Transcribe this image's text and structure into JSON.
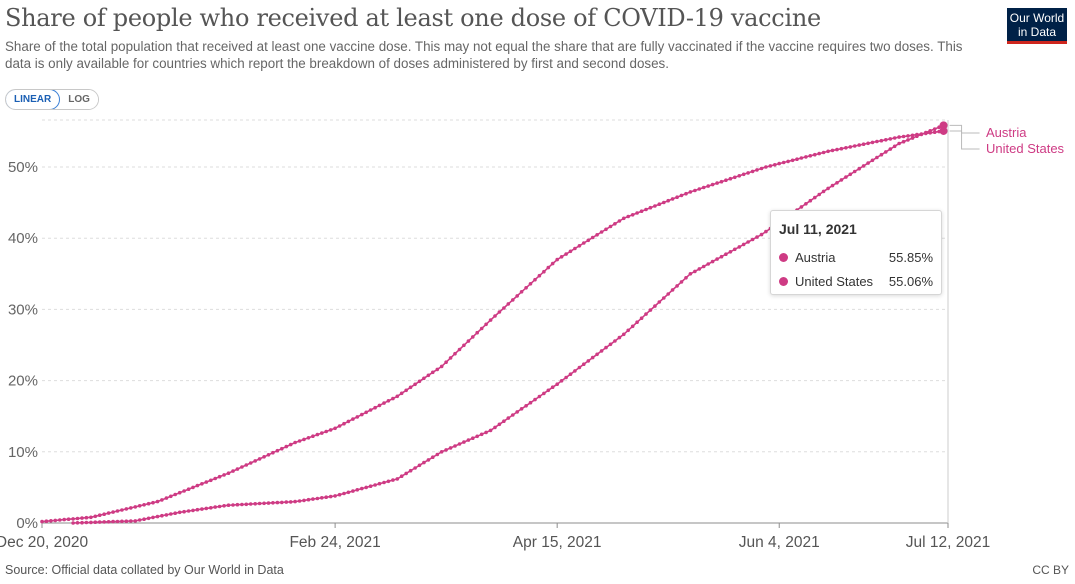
{
  "header": {
    "title": "Share of people who received at least one dose of COVID-19 vaccine",
    "subtitle": "Share of the total population that received at least one vaccine dose. This may not equal the share that are fully vaccinated if the vaccine requires two doses. This data is only available for countries which report the breakdown of doses administered by first and second doses.",
    "logo_line1": "Our World",
    "logo_line2": "in Data"
  },
  "scale_toggle": {
    "linear": "LINEAR",
    "log": "LOG",
    "selected": "LINEAR"
  },
  "tooltip": {
    "date": "Jul 11, 2021",
    "rows": [
      {
        "name": "Austria",
        "value": "55.85%"
      },
      {
        "name": "United States",
        "value": "55.06%"
      }
    ]
  },
  "footer": {
    "source": "Source: Official data collated by Our World in Data",
    "license": "CC BY"
  },
  "colors": {
    "series": "#ce3b84",
    "grid": "#dddddd",
    "axis": "#8e8e8e"
  },
  "chart_data": {
    "type": "line",
    "x_ticks": [
      "Dec 20, 2020",
      "Feb 24, 2021",
      "Apr 15, 2021",
      "Jun 4, 2021",
      "Jul 12, 2021"
    ],
    "y_ticks": [
      "0%",
      "10%",
      "20%",
      "30%",
      "40%",
      "50%"
    ],
    "xlim": [
      "2020-12-20",
      "2021-07-12"
    ],
    "ylim": [
      0,
      57
    ],
    "grid": "horizontal dashed",
    "legend": "right end labels",
    "series": [
      {
        "name": "United States",
        "color": "#ce3b84",
        "points": [
          [
            "2020-12-20",
            0.2
          ],
          [
            "2020-12-31",
            0.8
          ],
          [
            "2021-01-15",
            3.0
          ],
          [
            "2021-01-31",
            7.0
          ],
          [
            "2021-02-15",
            11.3
          ],
          [
            "2021-02-24",
            13.3
          ],
          [
            "2021-03-10",
            17.8
          ],
          [
            "2021-03-20",
            22.0
          ],
          [
            "2021-03-31",
            28.5
          ],
          [
            "2021-04-15",
            37.0
          ],
          [
            "2021-04-30",
            42.8
          ],
          [
            "2021-05-15",
            46.5
          ],
          [
            "2021-06-01",
            50.0
          ],
          [
            "2021-06-15",
            52.2
          ],
          [
            "2021-07-01",
            54.2
          ],
          [
            "2021-07-11",
            55.06
          ]
        ]
      },
      {
        "name": "Austria",
        "color": "#ce3b84",
        "points": [
          [
            "2020-12-27",
            0.0
          ],
          [
            "2021-01-10",
            0.3
          ],
          [
            "2021-01-20",
            1.5
          ],
          [
            "2021-01-31",
            2.5
          ],
          [
            "2021-02-15",
            3.0
          ],
          [
            "2021-02-24",
            3.8
          ],
          [
            "2021-03-10",
            6.2
          ],
          [
            "2021-03-20",
            10.0
          ],
          [
            "2021-03-31",
            13.0
          ],
          [
            "2021-04-15",
            19.5
          ],
          [
            "2021-04-30",
            26.5
          ],
          [
            "2021-05-15",
            35.0
          ],
          [
            "2021-05-31",
            40.5
          ],
          [
            "2021-06-15",
            47.0
          ],
          [
            "2021-07-01",
            53.3
          ],
          [
            "2021-07-11",
            55.85
          ]
        ]
      }
    ]
  }
}
